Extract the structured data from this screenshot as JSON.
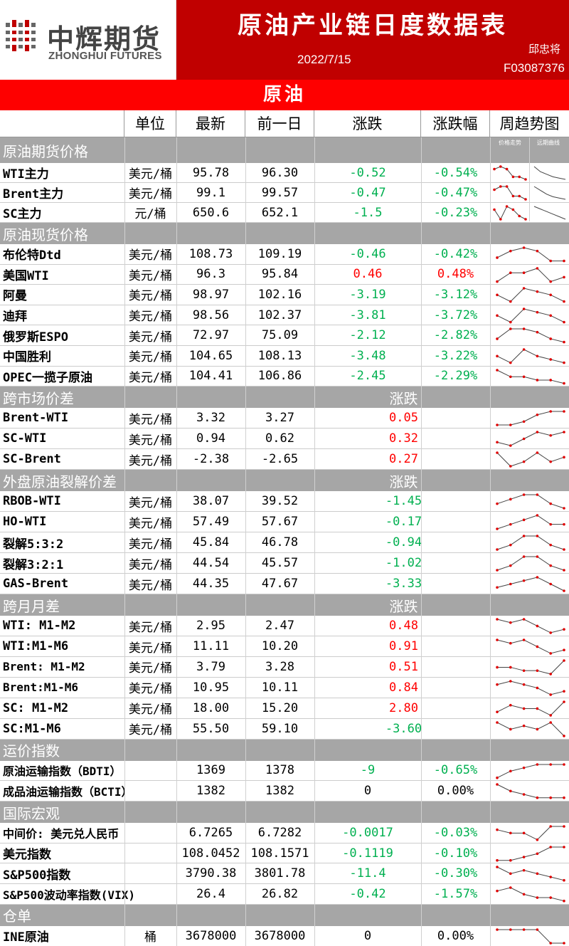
{
  "header": {
    "logo_cn": "中辉期货",
    "logo_en": "ZHONGHUI FUTURES",
    "title": "原油产业链日度数据表",
    "date": "2022/7/15",
    "author": "邱忠将",
    "analyst_id": "F03087376"
  },
  "section_title": "原油",
  "columns": {
    "unit": "单位",
    "latest": "最新",
    "prev": "前一日",
    "change": "涨跌",
    "pct": "涨跌幅",
    "trend": "周趋势图"
  },
  "mini_labels": {
    "price_trend": "价格走势",
    "far_curve": "远期曲线"
  },
  "colors": {
    "red": "#ff0000",
    "green": "#00b050",
    "header_red": "#c00000",
    "section_gray": "#a6a6a6"
  },
  "sections": [
    {
      "label": "原油期货价格",
      "change_header": "",
      "rows": [
        {
          "name": "WTI主力",
          "unit": "美元/桶",
          "latest": "95.78",
          "prev": "96.30",
          "change": "-0.52",
          "pct": "-0.54%",
          "dir": "down",
          "trend": [
            5,
            6,
            5,
            2,
            2,
            1
          ],
          "far": [
            6,
            4,
            3,
            2,
            1.5,
            1
          ]
        },
        {
          "name": "Brent主力",
          "unit": "美元/桶",
          "latest": "99.1",
          "prev": "99.57",
          "change": "-0.47",
          "pct": "-0.47%",
          "dir": "down",
          "trend": [
            4,
            5,
            5,
            2,
            2,
            1
          ],
          "far": [
            6,
            4.5,
            3,
            2,
            1.5,
            1
          ]
        },
        {
          "name": "SC主力",
          "unit": "元/桶",
          "latest": "650.6",
          "prev": "652.1",
          "change": "-1.5",
          "pct": "-0.23%",
          "dir": "down",
          "trend": [
            4,
            1,
            5,
            4,
            2,
            1
          ],
          "far": [
            6,
            5,
            4,
            3,
            2,
            1
          ]
        }
      ]
    },
    {
      "label": "原油现货价格",
      "change_header": "",
      "rows": [
        {
          "name": "布伦特Dtd",
          "unit": "美元/桶",
          "latest": "108.73",
          "prev": "109.19",
          "change": "-0.46",
          "pct": "-0.42%",
          "dir": "down",
          "trend": [
            2,
            4,
            5,
            4,
            1,
            1
          ]
        },
        {
          "name": "美国WTI",
          "unit": "美元/桶",
          "latest": "96.3",
          "prev": "95.84",
          "change": "0.46",
          "pct": "0.48%",
          "dir": "up",
          "trend": [
            1,
            3,
            3,
            4,
            1,
            2
          ]
        },
        {
          "name": "阿曼",
          "unit": "美元/桶",
          "latest": "98.97",
          "prev": "102.16",
          "change": "-3.19",
          "pct": "-3.12%",
          "dir": "down",
          "trend": [
            3,
            1,
            5,
            4,
            3,
            1
          ]
        },
        {
          "name": "迪拜",
          "unit": "美元/桶",
          "latest": "98.56",
          "prev": "102.37",
          "change": "-3.81",
          "pct": "-3.72%",
          "dir": "down",
          "trend": [
            3,
            1,
            5,
            4,
            3,
            1
          ]
        },
        {
          "name": "俄罗斯ESPO",
          "unit": "美元/桶",
          "latest": "72.97",
          "prev": "75.09",
          "change": "-2.12",
          "pct": "-2.82%",
          "dir": "down",
          "trend": [
            2,
            5,
            5,
            4,
            2,
            1
          ]
        },
        {
          "name": "中国胜利",
          "unit": "美元/桶",
          "latest": "104.65",
          "prev": "108.13",
          "change": "-3.48",
          "pct": "-3.22%",
          "dir": "down",
          "trend": [
            3,
            1,
            5,
            3,
            2,
            1
          ]
        },
        {
          "name": "OPEC一揽子原油",
          "unit": "美元/桶",
          "latest": "104.41",
          "prev": "106.86",
          "change": "-2.45",
          "pct": "-2.29%",
          "dir": "down",
          "trend": [
            5,
            3,
            3,
            2,
            2,
            1
          ]
        }
      ]
    },
    {
      "label": "跨市场价差",
      "change_header": "涨跌",
      "rows": [
        {
          "name": "Brent-WTI",
          "unit": "美元/桶",
          "latest": "3.32",
          "prev": "3.27",
          "change": "0.05",
          "pct": "",
          "dir": "up",
          "trend": [
            1,
            1,
            2,
            4,
            5,
            5
          ]
        },
        {
          "name": "SC-WTI",
          "unit": "美元/桶",
          "latest": "0.94",
          "prev": "0.62",
          "change": "0.32",
          "pct": "",
          "dir": "up",
          "trend": [
            2,
            1,
            3,
            5,
            4,
            5
          ]
        },
        {
          "name": "SC-Brent",
          "unit": "美元/桶",
          "latest": "-2.38",
          "prev": "-2.65",
          "change": "0.27",
          "pct": "",
          "dir": "up",
          "trend": [
            4,
            1,
            2,
            4,
            2,
            3
          ]
        }
      ]
    },
    {
      "label": "外盘原油裂解价差",
      "change_header": "涨跌",
      "rows": [
        {
          "name": "RBOB-WTI",
          "unit": "美元/桶",
          "latest": "38.07",
          "prev": "39.52",
          "change": "-1.45",
          "pct": "",
          "dir": "down",
          "trend": [
            3,
            4,
            5,
            5,
            3,
            2
          ]
        },
        {
          "name": "HO-WTI",
          "unit": "美元/桶",
          "latest": "57.49",
          "prev": "57.67",
          "change": "-0.17",
          "pct": "",
          "dir": "down",
          "trend": [
            2,
            3,
            4,
            5,
            3,
            3
          ]
        },
        {
          "name": "裂解5:3:2",
          "unit": "美元/桶",
          "latest": "45.84",
          "prev": "46.78",
          "change": "-0.94",
          "pct": "",
          "dir": "down",
          "trend": [
            2,
            3,
            5,
            5,
            3,
            2
          ]
        },
        {
          "name": "裂解3:2:1",
          "unit": "美元/桶",
          "latest": "44.54",
          "prev": "45.57",
          "change": "-1.02",
          "pct": "",
          "dir": "down",
          "trend": [
            2,
            3,
            5,
            5,
            3,
            2
          ]
        },
        {
          "name": "GAS-Brent",
          "unit": "美元/桶",
          "latest": "44.35",
          "prev": "47.67",
          "change": "-3.33",
          "pct": "",
          "dir": "down",
          "trend": [
            2,
            3,
            4,
            5,
            3,
            1
          ]
        }
      ]
    },
    {
      "label": "跨月月差",
      "change_header": "涨跌",
      "rows": [
        {
          "name": "WTI: M1-M2",
          "unit": "美元/桶",
          "latest": "2.95",
          "prev": "2.47",
          "change": "0.48",
          "pct": "",
          "dir": "up",
          "trend": [
            5,
            4,
            5,
            3,
            1,
            2
          ]
        },
        {
          "name": "WTI:M1-M6",
          "unit": "美元/桶",
          "latest": "11.11",
          "prev": "10.20",
          "change": "0.91",
          "pct": "",
          "dir": "up",
          "trend": [
            5,
            4,
            5,
            3,
            1,
            2
          ]
        },
        {
          "name": "Brent: M1-M2",
          "unit": "美元/桶",
          "latest": "3.79",
          "prev": "3.28",
          "change": "0.51",
          "pct": "",
          "dir": "up",
          "trend": [
            3,
            3,
            2,
            2,
            1,
            5
          ]
        },
        {
          "name": "Brent:M1-M6",
          "unit": "美元/桶",
          "latest": "10.95",
          "prev": "10.11",
          "change": "0.84",
          "pct": "",
          "dir": "up",
          "trend": [
            4,
            5,
            4,
            3,
            1,
            2
          ]
        },
        {
          "name": "SC: M1-M2",
          "unit": "美元/桶",
          "latest": "18.00",
          "prev": "15.20",
          "change": "2.80",
          "pct": "",
          "dir": "up",
          "trend": [
            2,
            4,
            3,
            3,
            1,
            5
          ]
        },
        {
          "name": "SC:M1-M6",
          "unit": "美元/桶",
          "latest": "55.50",
          "prev": "59.10",
          "change": "-3.60",
          "pct": "",
          "dir": "down",
          "trend": [
            5,
            3,
            4,
            3,
            5,
            1
          ]
        }
      ]
    },
    {
      "label": "运价指数",
      "change_header": "",
      "rows": [
        {
          "name": "原油运输指数（BDTI）",
          "unit": "",
          "latest": "1369",
          "prev": "1378",
          "change": "-9",
          "pct": "-0.65%",
          "dir": "down",
          "trend": [
            1,
            3,
            4,
            5,
            5,
            5
          ]
        },
        {
          "name": "成品油运输指数（BCTI）",
          "unit": "",
          "latest": "1382",
          "prev": "1382",
          "change": "0",
          "pct": "0.00%",
          "dir": "flat",
          "trend": [
            5,
            3,
            2,
            1,
            1,
            1
          ]
        }
      ]
    },
    {
      "label": "国际宏观",
      "change_header": "",
      "rows": [
        {
          "name": "中间价: 美元兑人民币",
          "unit": "",
          "latest": "6.7265",
          "prev": "6.7282",
          "change": "-0.0017",
          "pct": "-0.03%",
          "dir": "down",
          "trend": [
            4,
            3,
            3,
            1,
            5,
            5
          ]
        },
        {
          "name": "美元指数",
          "unit": "",
          "latest": "108.0452",
          "prev": "108.1571",
          "change": "-0.1119",
          "pct": "-0.10%",
          "dir": "down",
          "trend": [
            1,
            1,
            2,
            3,
            5,
            5
          ]
        },
        {
          "name": "S&P500指数",
          "unit": "",
          "latest": "3790.38",
          "prev": "3801.78",
          "change": "-11.4",
          "pct": "-0.30%",
          "dir": "down",
          "trend": [
            5,
            3,
            4,
            3,
            2,
            1
          ]
        },
        {
          "name": "S&P500波动率指数(VIX)",
          "unit": "",
          "latest": "26.4",
          "prev": "26.82",
          "change": "-0.42",
          "pct": "-1.57%",
          "dir": "down",
          "trend": [
            4,
            5,
            3,
            2,
            2,
            1
          ]
        }
      ]
    },
    {
      "label": "仓单",
      "change_header": "",
      "rows": [
        {
          "name": "INE原油",
          "unit": "桶",
          "latest": "3678000",
          "prev": "3678000",
          "change": "0",
          "pct": "0.00%",
          "dir": "flat",
          "trend": [
            5,
            5,
            5,
            5,
            1,
            1
          ]
        }
      ]
    }
  ]
}
